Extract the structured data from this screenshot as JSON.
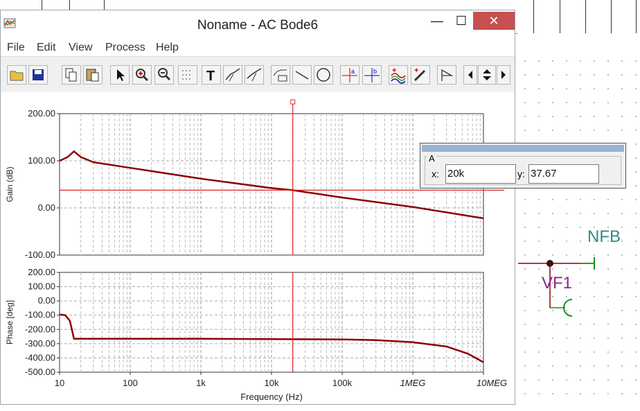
{
  "window": {
    "title": "Noname - AC Bode6",
    "minimize_label": "—",
    "maximize_label": "☐",
    "close_label": "✕"
  },
  "menu": [
    "File",
    "Edit",
    "View",
    "Process",
    "Help"
  ],
  "toolbar_icons": [
    "open-icon",
    "save-icon",
    "copy-icon",
    "paste-icon",
    "pointer-icon",
    "zoom-in-icon",
    "zoom-100-icon",
    "grid-icon",
    "text-icon",
    "curve-label-icon",
    "curve-label2-icon",
    "table-icon",
    "line-icon",
    "circle-icon",
    "cursor-a-icon",
    "cursor-b-icon",
    "add-curve-icon",
    "color-picker-icon",
    "flag-icon",
    "scroll-left-icon",
    "scroll-updown-icon",
    "scroll-right-icon"
  ],
  "cursor": {
    "label": "A",
    "x_label": "x:",
    "x_value": "20k",
    "y_label": "y:",
    "y_value": "37.67"
  },
  "schematic": {
    "net_label": "NFB",
    "component_label": "VF1",
    "net_color": "#2e8b8b",
    "component_color": "#8b2a8b"
  },
  "chart_data": [
    {
      "type": "line",
      "xscale": "log",
      "xlim": [
        10,
        10000000
      ],
      "ylim": [
        -100,
        200
      ],
      "ylabel": "Gain (dB)",
      "yticks": [
        "200.00",
        "100.00",
        "0.00",
        "-100.00"
      ],
      "series": [
        {
          "color": "#8b0000",
          "x": [
            10,
            13,
            16,
            20,
            30,
            100,
            1000,
            10000,
            20000,
            100000,
            1000000,
            10000000
          ],
          "y": [
            100,
            108,
            120,
            108,
            97,
            85,
            62,
            42,
            37.67,
            22,
            2,
            -22
          ]
        }
      ],
      "cursor_x": 20000,
      "cursor_y": 37.67
    },
    {
      "type": "line",
      "xscale": "log",
      "xlim": [
        10,
        10000000
      ],
      "ylim": [
        -500,
        200
      ],
      "ylabel": "Phase [deg]",
      "xlabel": "Frequency (Hz)",
      "yticks": [
        "200.00",
        "100.00",
        "0.00",
        "-100.00",
        "-200.00",
        "-300.00",
        "-400.00",
        "-500.00"
      ],
      "xticks": [
        "10",
        "100",
        "1k",
        "10k",
        "100k",
        "1MEG",
        "10MEG"
      ],
      "series": [
        {
          "color": "#8b0000",
          "x": [
            10,
            12,
            14,
            16,
            20,
            1000,
            10000,
            100000,
            300000,
            1000000,
            3000000,
            6000000,
            10000000
          ],
          "y": [
            -95,
            -100,
            -140,
            -265,
            -265,
            -265,
            -268,
            -270,
            -275,
            -290,
            -320,
            -370,
            -430
          ]
        }
      ],
      "cursor_x": 20000
    }
  ]
}
